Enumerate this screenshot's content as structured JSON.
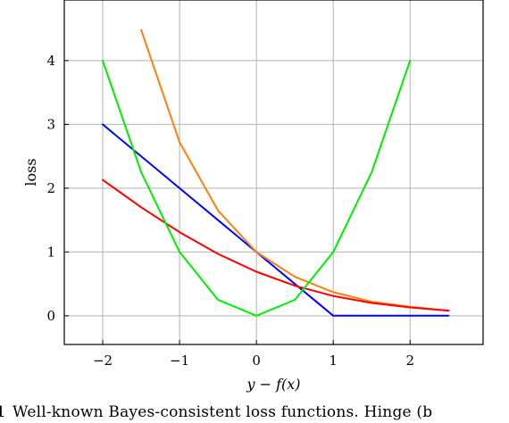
{
  "chart_data": {
    "type": "line",
    "xlabel": "y − f(x)",
    "ylabel": "loss",
    "xlim": [
      -2.5,
      2.95
    ],
    "ylim": [
      -0.45,
      4.95
    ],
    "xticks": [
      -2,
      -1,
      0,
      1,
      2
    ],
    "xtick_labels": [
      "−2",
      "−1",
      "0",
      "1",
      "2"
    ],
    "yticks": [
      0,
      1,
      2,
      3,
      4
    ],
    "ytick_labels": [
      "0",
      "1",
      "2",
      "3",
      "4"
    ],
    "grid": true,
    "series": [
      {
        "color": "#0000ff",
        "x": [
          -2,
          -1,
          0,
          1,
          1.5,
          2,
          2.5
        ],
        "y": [
          3,
          2,
          1,
          0,
          0,
          0,
          0
        ]
      },
      {
        "color": "#ff7f0e",
        "x": [
          -1.5,
          -1,
          -0.5,
          0,
          0.5,
          1,
          1.5,
          2,
          2.5
        ],
        "y": [
          4.48,
          2.72,
          1.65,
          1,
          0.61,
          0.37,
          0.22,
          0.14,
          0.08
        ]
      },
      {
        "color": "#ff0000",
        "x": [
          -2,
          -1.5,
          -1,
          -0.5,
          0,
          0.5,
          1,
          1.5,
          2,
          2.5
        ],
        "y": [
          2.13,
          1.7,
          1.31,
          0.97,
          0.69,
          0.47,
          0.31,
          0.2,
          0.13,
          0.08
        ]
      },
      {
        "color": "#00ee00",
        "x": [
          -2,
          -1.5,
          -1,
          -0.5,
          0,
          0.5,
          1,
          1.5,
          2
        ],
        "y": [
          4,
          2.25,
          1,
          0.25,
          0,
          0.25,
          1,
          2.25,
          4
        ]
      }
    ]
  },
  "caption": {
    "lead": "1",
    "text": "Well-known Bayes-consistent loss functions. Hinge (b"
  }
}
